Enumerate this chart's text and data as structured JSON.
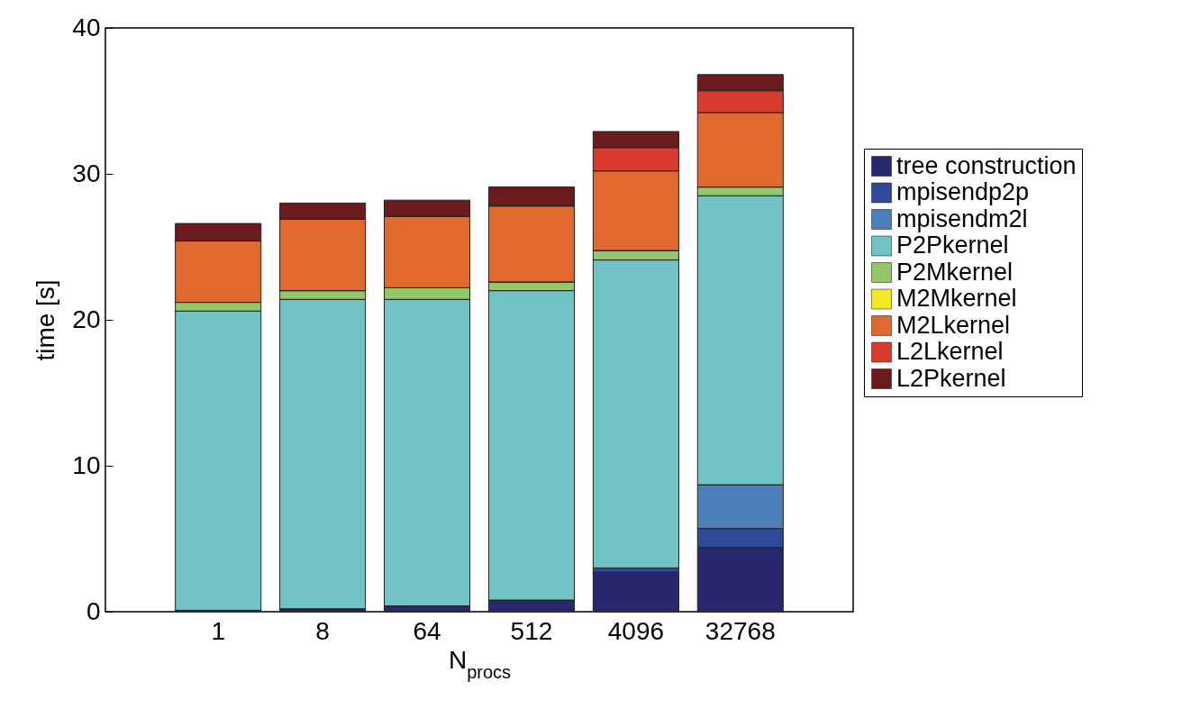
{
  "chart_data": {
    "type": "bar",
    "stacked": true,
    "xlabel": "N$_{procs}$",
    "ylabel": "time [s]",
    "categories": [
      "1",
      "8",
      "64",
      "512",
      "4096",
      "32768"
    ],
    "ylim": [
      0,
      40
    ],
    "yticks": [
      0,
      10,
      20,
      30,
      40
    ],
    "grid": false,
    "legend": "right",
    "series": [
      {
        "name": "tree construction",
        "color": "#27286e",
        "values": [
          0.1,
          0.2,
          0.4,
          0.8,
          2.7,
          4.4
        ]
      },
      {
        "name": "mpisendp2p",
        "color": "#2f4a9a",
        "values": [
          0,
          0,
          0,
          0,
          0.3,
          1.3
        ]
      },
      {
        "name": "mpisendm2l",
        "color": "#4a7fba",
        "values": [
          0,
          0,
          0,
          0,
          0,
          3.0
        ]
      },
      {
        "name": "P2Pkernel",
        "color": "#72c3c4",
        "values": [
          20.5,
          21.2,
          21.0,
          21.2,
          21.1,
          19.8
        ]
      },
      {
        "name": "P2Mkernel",
        "color": "#93c76a",
        "values": [
          0.6,
          0.6,
          0.8,
          0.6,
          0.65,
          0.6
        ]
      },
      {
        "name": "M2Mkernel",
        "color": "#f5e82a",
        "values": [
          0,
          0,
          0,
          0,
          0,
          0
        ]
      },
      {
        "name": "M2Lkernel",
        "color": "#e2692e",
        "values": [
          4.2,
          4.9,
          4.9,
          5.2,
          5.45,
          5.1
        ]
      },
      {
        "name": "L2Lkernel",
        "color": "#d93a2e",
        "values": [
          0,
          0,
          0,
          0,
          1.6,
          1.5
        ]
      },
      {
        "name": "L2Pkernel",
        "color": "#6b1a1e",
        "values": [
          1.2,
          1.1,
          1.1,
          1.3,
          1.1,
          1.1
        ]
      }
    ]
  }
}
